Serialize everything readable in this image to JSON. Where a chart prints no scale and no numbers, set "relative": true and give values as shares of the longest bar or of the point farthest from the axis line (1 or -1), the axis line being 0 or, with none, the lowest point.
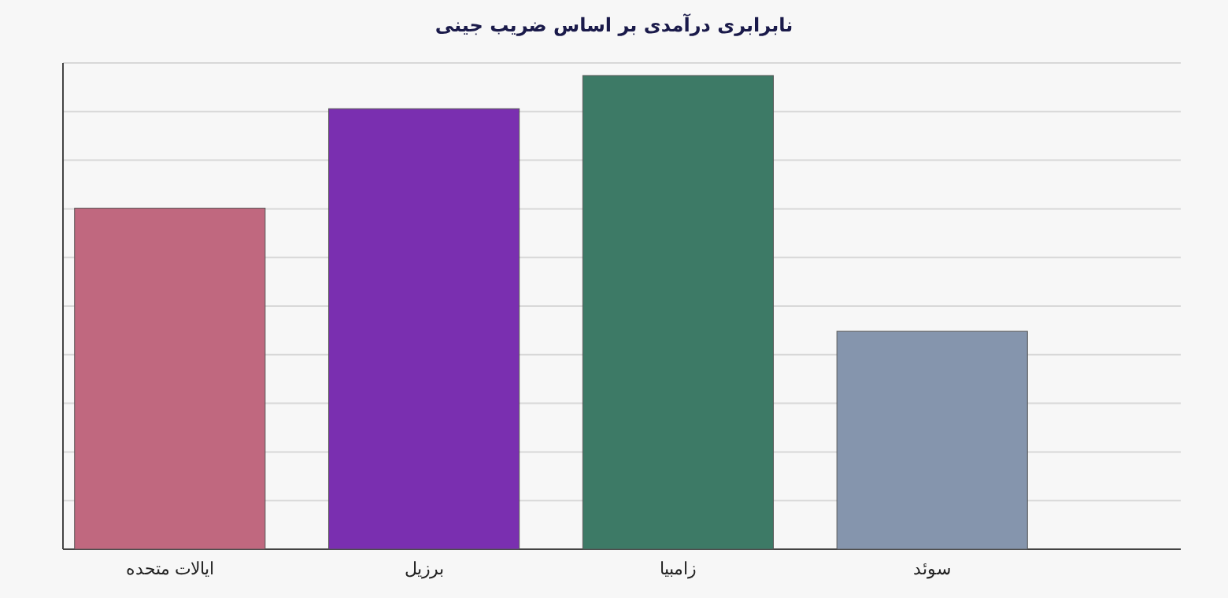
{
  "chart_data": {
    "type": "bar",
    "title": "نابرابری درآمدی بر اساس ضریب جینی",
    "relative": true,
    "grid": true,
    "categories": [
      "ایالات متحده",
      "برزیل",
      "زامبیا",
      "سوئد"
    ],
    "values": [
      0.72,
      0.93,
      1,
      0.46
    ],
    "colors": [
      "#c0687f",
      "#7a2fb0",
      "#3d7a66",
      "#8595ad"
    ]
  }
}
